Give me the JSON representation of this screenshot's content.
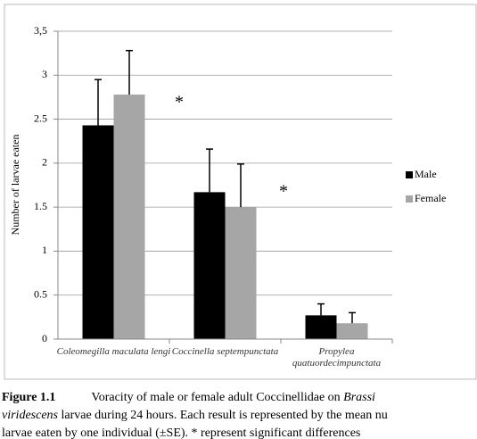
{
  "chart_data": {
    "type": "bar",
    "ylabel": "Number of larvae eaten",
    "categories": [
      "Coleomegilla maculata lengi",
      "Coccinella septempunctata",
      "Propylea quatuordecimpunctata"
    ],
    "series": [
      {
        "name": "Male",
        "color": "#000000",
        "values": [
          2.43,
          1.67,
          0.27
        ],
        "errors": [
          0.52,
          0.49,
          0.13
        ]
      },
      {
        "name": "Female",
        "color": "#a6a6a6",
        "values": [
          2.78,
          1.5,
          0.18
        ],
        "errors": [
          0.5,
          0.49,
          0.12
        ]
      }
    ],
    "ylim": [
      0,
      3.5
    ],
    "yticks": [
      0,
      0.5,
      1,
      1.5,
      2,
      2.5,
      3,
      {
        "value": 3.5,
        "label": "3,5"
      }
    ],
    "grid": true,
    "annotations": [
      "*",
      "*"
    ]
  },
  "caption": {
    "label": "Figure 1.1",
    "lines": [
      [
        "Voracity of male or female adult Coccinellidae on ",
        "Brassi"
      ],
      [
        "viridescens",
        " larvae during 24 hours. Each result is represented by the mean nu"
      ],
      [
        "larvae eaten by one individual (±SE). * represent significant differences"
      ]
    ]
  }
}
